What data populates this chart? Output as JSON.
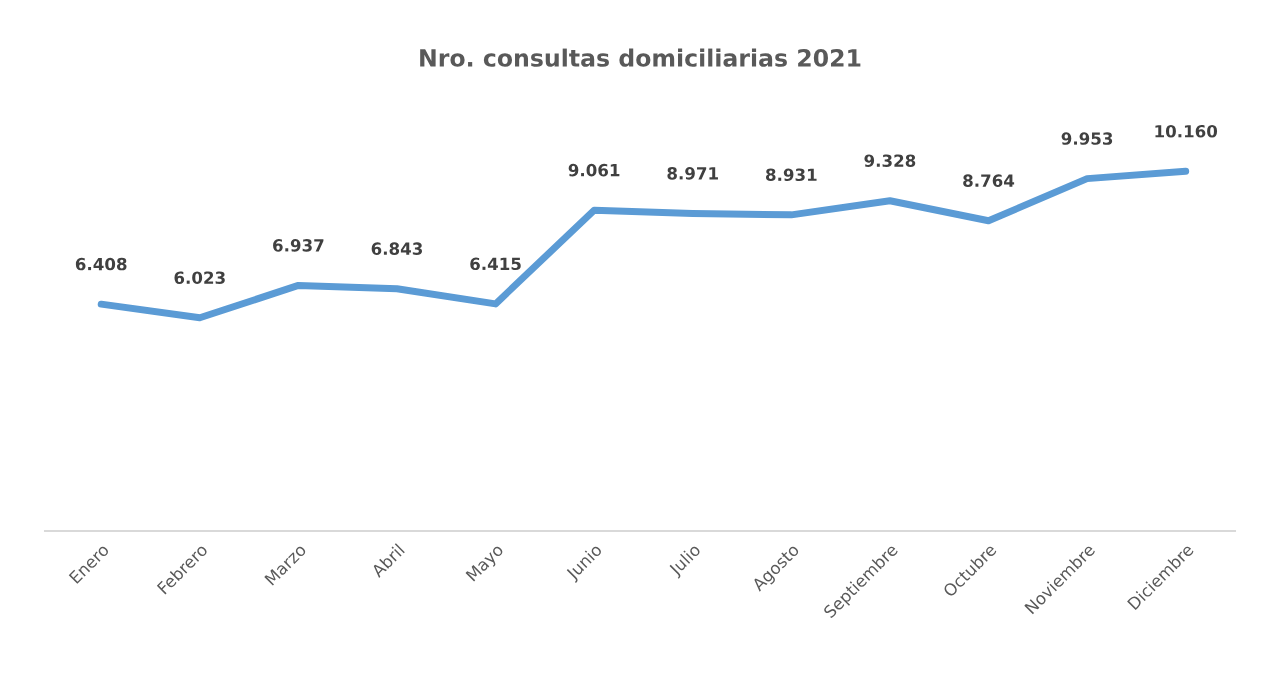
{
  "chart_data": {
    "type": "line",
    "title": "Nro. consultas domiciliarias 2021",
    "categories": [
      "Enero",
      "Febrero",
      "Marzo",
      "Abril",
      "Mayo",
      "Junio",
      "Julio",
      "Agosto",
      "Septiembre",
      "Octubre",
      "Noviembre",
      "Diciembre"
    ],
    "series": [
      {
        "color": "#5b9bd5",
        "values": [
          6408,
          6023,
          6937,
          6843,
          6415,
          9061,
          8971,
          8931,
          9328,
          8764,
          9953,
          10160
        ],
        "value_labels": [
          "6.408",
          "6.023",
          "6.937",
          "6.843",
          "6.415",
          "9.061",
          "8.971",
          "8.931",
          "9.328",
          "8.764",
          "9.953",
          "10.160"
        ]
      }
    ],
    "tick_labels": "x",
    "grid": false,
    "legend": false,
    "marker": "none",
    "line_style": "solid"
  }
}
